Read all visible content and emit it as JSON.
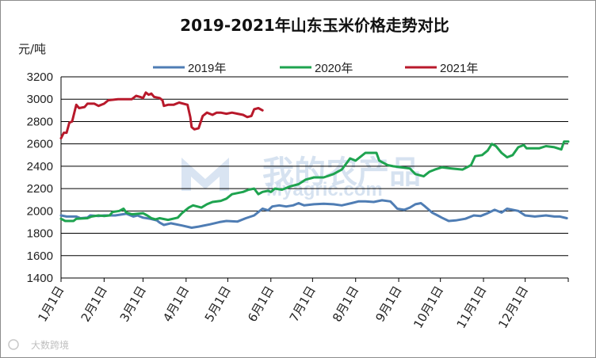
{
  "chart_data": {
    "type": "line",
    "title": "2019-2021年山东玉米价格走势对比",
    "ylabel": "元/吨",
    "ylim": [
      1400,
      3200
    ],
    "yticks": [
      1400,
      1600,
      1800,
      2000,
      2200,
      2400,
      2600,
      2800,
      3000,
      3200
    ],
    "xlim": [
      1,
      366
    ],
    "month_labels": [
      "1月1日",
      "2月1日",
      "3月1日",
      "4月1日",
      "5月1日",
      "6月1日",
      "7月1日",
      "8月1日",
      "9月1日",
      "10月1日",
      "11月1日",
      "12月1日"
    ],
    "month_days": [
      1,
      32,
      60,
      91,
      121,
      152,
      182,
      213,
      244,
      274,
      305,
      335
    ],
    "grid": true,
    "legend_position": "top",
    "series": [
      {
        "name": "2019年",
        "color": "#4f7db4",
        "points": [
          [
            1,
            1960
          ],
          [
            5,
            1950
          ],
          [
            12,
            1950
          ],
          [
            15,
            1935
          ],
          [
            20,
            1940
          ],
          [
            22,
            1960
          ],
          [
            28,
            1955
          ],
          [
            32,
            1960
          ],
          [
            40,
            1960
          ],
          [
            48,
            1975
          ],
          [
            53,
            1950
          ],
          [
            56,
            1960
          ],
          [
            60,
            1940
          ],
          [
            65,
            1930
          ],
          [
            70,
            1915
          ],
          [
            72,
            1895
          ],
          [
            75,
            1875
          ],
          [
            80,
            1890
          ],
          [
            88,
            1870
          ],
          [
            95,
            1850
          ],
          [
            100,
            1860
          ],
          [
            108,
            1880
          ],
          [
            115,
            1900
          ],
          [
            120,
            1910
          ],
          [
            128,
            1905
          ],
          [
            134,
            1935
          ],
          [
            140,
            1960
          ],
          [
            143,
            1990
          ],
          [
            146,
            2020
          ],
          [
            150,
            2005
          ],
          [
            153,
            2040
          ],
          [
            158,
            2050
          ],
          [
            163,
            2040
          ],
          [
            168,
            2050
          ],
          [
            172,
            2070
          ],
          [
            176,
            2050
          ],
          [
            183,
            2060
          ],
          [
            190,
            2065
          ],
          [
            197,
            2060
          ],
          [
            203,
            2050
          ],
          [
            210,
            2070
          ],
          [
            215,
            2085
          ],
          [
            220,
            2085
          ],
          [
            226,
            2080
          ],
          [
            232,
            2095
          ],
          [
            238,
            2085
          ],
          [
            240,
            2060
          ],
          [
            243,
            2020
          ],
          [
            248,
            2010
          ],
          [
            252,
            2030
          ],
          [
            256,
            2060
          ],
          [
            260,
            2070
          ],
          [
            263,
            2040
          ],
          [
            268,
            1985
          ],
          [
            272,
            1960
          ],
          [
            275,
            1940
          ],
          [
            280,
            1910
          ],
          [
            285,
            1915
          ],
          [
            292,
            1930
          ],
          [
            298,
            1960
          ],
          [
            303,
            1955
          ],
          [
            308,
            1980
          ],
          [
            313,
            2010
          ],
          [
            318,
            1985
          ],
          [
            322,
            2020
          ],
          [
            330,
            2000
          ],
          [
            335,
            1960
          ],
          [
            342,
            1950
          ],
          [
            350,
            1960
          ],
          [
            356,
            1950
          ],
          [
            360,
            1950
          ],
          [
            365,
            1935
          ]
        ]
      },
      {
        "name": "2020年",
        "color": "#1ea34f",
        "points": [
          [
            1,
            1930
          ],
          [
            4,
            1910
          ],
          [
            10,
            1910
          ],
          [
            12,
            1930
          ],
          [
            20,
            1935
          ],
          [
            23,
            1950
          ],
          [
            28,
            1960
          ],
          [
            32,
            1955
          ],
          [
            36,
            1960
          ],
          [
            38,
            1990
          ],
          [
            43,
            2000
          ],
          [
            46,
            2020
          ],
          [
            48,
            1985
          ],
          [
            52,
            1970
          ],
          [
            56,
            1975
          ],
          [
            60,
            1980
          ],
          [
            63,
            1960
          ],
          [
            66,
            1935
          ],
          [
            69,
            1925
          ],
          [
            72,
            1935
          ],
          [
            78,
            1920
          ],
          [
            85,
            1940
          ],
          [
            88,
            1980
          ],
          [
            93,
            2030
          ],
          [
            96,
            2050
          ],
          [
            102,
            2030
          ],
          [
            106,
            2060
          ],
          [
            110,
            2080
          ],
          [
            116,
            2090
          ],
          [
            120,
            2110
          ],
          [
            124,
            2150
          ],
          [
            132,
            2170
          ],
          [
            136,
            2190
          ],
          [
            140,
            2200
          ],
          [
            143,
            2150
          ],
          [
            146,
            2170
          ],
          [
            150,
            2180
          ],
          [
            152,
            2170
          ],
          [
            155,
            2200
          ],
          [
            160,
            2190
          ],
          [
            166,
            2220
          ],
          [
            172,
            2240
          ],
          [
            177,
            2280
          ],
          [
            183,
            2300
          ],
          [
            190,
            2300
          ],
          [
            197,
            2330
          ],
          [
            203,
            2370
          ],
          [
            206,
            2420
          ],
          [
            209,
            2470
          ],
          [
            213,
            2450
          ],
          [
            216,
            2480
          ],
          [
            220,
            2520
          ],
          [
            228,
            2520
          ],
          [
            230,
            2450
          ],
          [
            236,
            2410
          ],
          [
            240,
            2400
          ],
          [
            252,
            2380
          ],
          [
            256,
            2330
          ],
          [
            262,
            2310
          ],
          [
            266,
            2350
          ],
          [
            270,
            2370
          ],
          [
            275,
            2390
          ],
          [
            282,
            2380
          ],
          [
            290,
            2370
          ],
          [
            296,
            2410
          ],
          [
            299,
            2490
          ],
          [
            304,
            2500
          ],
          [
            308,
            2540
          ],
          [
            311,
            2600
          ],
          [
            314,
            2580
          ],
          [
            318,
            2520
          ],
          [
            322,
            2480
          ],
          [
            326,
            2500
          ],
          [
            330,
            2570
          ],
          [
            334,
            2590
          ],
          [
            336,
            2560
          ],
          [
            345,
            2560
          ],
          [
            350,
            2580
          ],
          [
            356,
            2570
          ],
          [
            361,
            2550
          ],
          [
            363,
            2620
          ],
          [
            366,
            2620
          ]
        ]
      },
      {
        "name": "2021年",
        "color": "#b8192b",
        "points": [
          [
            1,
            2650
          ],
          [
            3,
            2700
          ],
          [
            5,
            2700
          ],
          [
            7,
            2790
          ],
          [
            9,
            2800
          ],
          [
            11,
            2900
          ],
          [
            12,
            2950
          ],
          [
            14,
            2920
          ],
          [
            18,
            2930
          ],
          [
            20,
            2960
          ],
          [
            25,
            2960
          ],
          [
            28,
            2940
          ],
          [
            32,
            2960
          ],
          [
            35,
            2990
          ],
          [
            42,
            3000
          ],
          [
            48,
            3000
          ],
          [
            52,
            3000
          ],
          [
            55,
            3030
          ],
          [
            58,
            3020
          ],
          [
            60,
            3010
          ],
          [
            62,
            3060
          ],
          [
            64,
            3040
          ],
          [
            66,
            3050
          ],
          [
            68,
            3020
          ],
          [
            72,
            3010
          ],
          [
            74,
            2990
          ],
          [
            75,
            2940
          ],
          [
            78,
            2950
          ],
          [
            82,
            2950
          ],
          [
            86,
            2970
          ],
          [
            92,
            2950
          ],
          [
            94,
            2840
          ],
          [
            95,
            2750
          ],
          [
            97,
            2730
          ],
          [
            100,
            2740
          ],
          [
            103,
            2850
          ],
          [
            106,
            2880
          ],
          [
            110,
            2860
          ],
          [
            113,
            2880
          ],
          [
            116,
            2880
          ],
          [
            120,
            2870
          ],
          [
            124,
            2880
          ],
          [
            128,
            2870
          ],
          [
            132,
            2860
          ],
          [
            135,
            2840
          ],
          [
            138,
            2850
          ],
          [
            140,
            2910
          ],
          [
            143,
            2920
          ],
          [
            146,
            2900
          ]
        ]
      }
    ]
  },
  "watermark": {
    "main": "我的农产品",
    "sub": "Myagric.com"
  },
  "footer": {
    "brand": "大数跨境"
  }
}
